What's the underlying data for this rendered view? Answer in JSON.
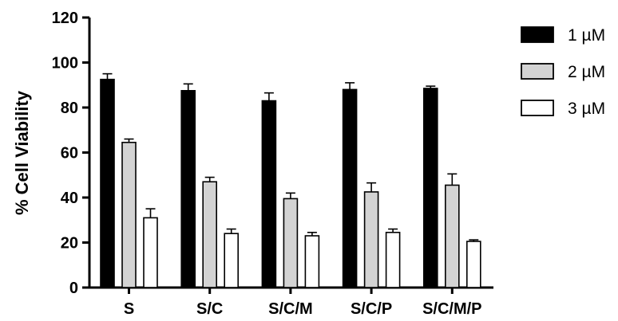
{
  "chart_data": {
    "type": "bar",
    "title": "",
    "xlabel": "",
    "ylabel": "% Cell Viability",
    "ylim": [
      0,
      120
    ],
    "yticks": [
      0,
      20,
      40,
      60,
      80,
      100,
      120
    ],
    "categories": [
      "S",
      "S/C",
      "S/C/M",
      "S/C/P",
      "S/C/M/P"
    ],
    "series": [
      {
        "name": "1 µM",
        "color": "#000000",
        "values": [
          92.5,
          87.5,
          83,
          88,
          88.5
        ],
        "errors": [
          2.5,
          3,
          3.5,
          3,
          1
        ]
      },
      {
        "name": "2 µM",
        "color": "#d3d3d3",
        "values": [
          64.5,
          47,
          39.5,
          42.5,
          45.5
        ],
        "errors": [
          1.5,
          2,
          2.5,
          4,
          5
        ]
      },
      {
        "name": "3 µM",
        "color": "#ffffff",
        "values": [
          31,
          24,
          23,
          24.5,
          20.5
        ],
        "errors": [
          4,
          2,
          1.5,
          1.5,
          0.7
        ]
      }
    ],
    "legend_position": "top-right",
    "grid": false
  }
}
